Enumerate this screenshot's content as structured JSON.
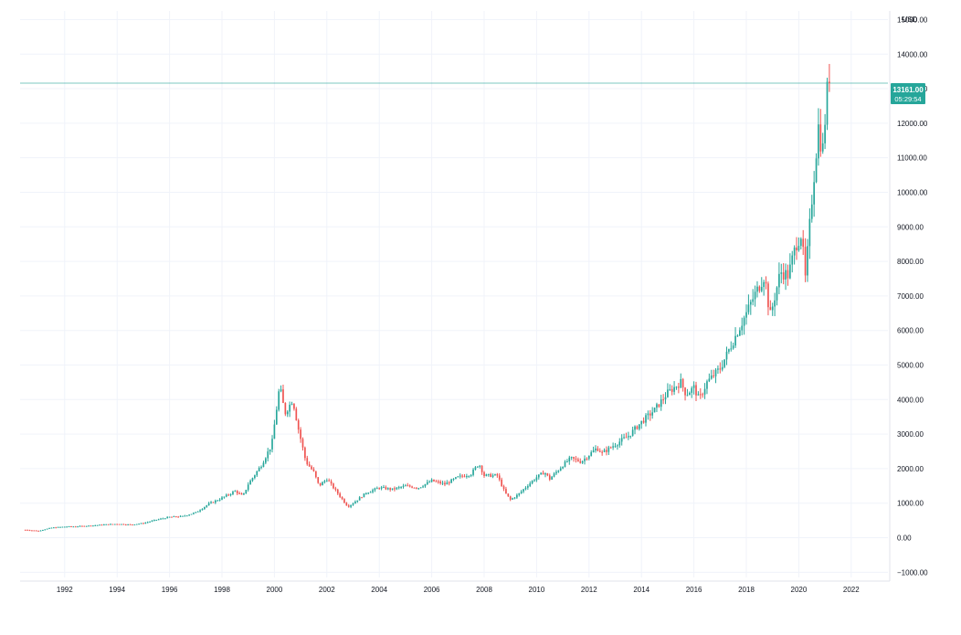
{
  "currency_label": "USD",
  "last_price_label": {
    "price": "13161.00",
    "countdown": "05:29:54"
  },
  "colors": {
    "up": "#26a69a",
    "down": "#ef5350",
    "grid": "#f0f3fa",
    "axis_text": "#131722",
    "price_line": "#26a69a",
    "price_badge": "#26a69a"
  },
  "chart_data": {
    "type": "candlestick",
    "title": "",
    "interval": "monthly",
    "x_axis": {
      "tick_labels": [
        "1992",
        "1994",
        "1996",
        "1998",
        "2000",
        "2002",
        "2004",
        "2006",
        "2008",
        "2010",
        "2012",
        "2014",
        "2016",
        "2018",
        "2020",
        "2022"
      ],
      "range": [
        1990.3,
        2023.4
      ]
    },
    "y_axis": {
      "tick_labels": [
        "15000.00",
        "14000.00",
        "13000.00",
        "12000.00",
        "11000.00",
        "10000.00",
        "9000.00",
        "8000.00",
        "7000.00",
        "6000.00",
        "5000.00",
        "4000.00",
        "3000.00",
        "2000.00",
        "1000.00",
        "0.00",
        "−1000.00"
      ],
      "range": [
        -1150,
        15250
      ],
      "unit": "USD"
    },
    "last_price": 13161,
    "grid": true,
    "anchors": [
      [
        1990.5,
        230
      ],
      [
        1991.0,
        200
      ],
      [
        1991.5,
        290
      ],
      [
        1992.0,
        320
      ],
      [
        1992.5,
        330
      ],
      [
        1993.0,
        350
      ],
      [
        1993.5,
        380
      ],
      [
        1994.0,
        400
      ],
      [
        1994.5,
        380
      ],
      [
        1995.0,
        420
      ],
      [
        1995.5,
        520
      ],
      [
        1996.0,
        600
      ],
      [
        1996.5,
        620
      ],
      [
        1997.0,
        730
      ],
      [
        1997.5,
        980
      ],
      [
        1998.0,
        1150
      ],
      [
        1998.5,
        1350
      ],
      [
        1998.8,
        1200
      ],
      [
        1999.0,
        1550
      ],
      [
        1999.5,
        2100
      ],
      [
        1999.9,
        2700
      ],
      [
        2000.2,
        4400
      ],
      [
        2000.4,
        3600
      ],
      [
        2000.7,
        4000
      ],
      [
        2000.9,
        3200
      ],
      [
        2001.2,
        2200
      ],
      [
        2001.5,
        1900
      ],
      [
        2001.7,
        1500
      ],
      [
        2002.0,
        1700
      ],
      [
        2002.5,
        1200
      ],
      [
        2002.8,
        900
      ],
      [
        2003.0,
        1000
      ],
      [
        2003.5,
        1300
      ],
      [
        2004.0,
        1450
      ],
      [
        2004.5,
        1400
      ],
      [
        2005.0,
        1500
      ],
      [
        2005.5,
        1450
      ],
      [
        2006.0,
        1650
      ],
      [
        2006.5,
        1550
      ],
      [
        2007.0,
        1750
      ],
      [
        2007.5,
        1850
      ],
      [
        2007.8,
        2150
      ],
      [
        2008.0,
        1800
      ],
      [
        2008.5,
        1800
      ],
      [
        2008.8,
        1300
      ],
      [
        2009.0,
        1100
      ],
      [
        2009.3,
        1250
      ],
      [
        2009.7,
        1550
      ],
      [
        2010.0,
        1750
      ],
      [
        2010.3,
        1900
      ],
      [
        2010.5,
        1700
      ],
      [
        2011.0,
        2100
      ],
      [
        2011.3,
        2300
      ],
      [
        2011.7,
        2200
      ],
      [
        2012.0,
        2400
      ],
      [
        2012.3,
        2600
      ],
      [
        2012.5,
        2450
      ],
      [
        2013.0,
        2700
      ],
      [
        2013.5,
        2950
      ],
      [
        2014.0,
        3350
      ],
      [
        2014.5,
        3700
      ],
      [
        2015.0,
        4200
      ],
      [
        2015.5,
        4500
      ],
      [
        2015.7,
        4150
      ],
      [
        2016.0,
        4350
      ],
      [
        2016.2,
        4000
      ],
      [
        2016.5,
        4500
      ],
      [
        2017.0,
        4900
      ],
      [
        2017.5,
        5700
      ],
      [
        2018.0,
        6500
      ],
      [
        2018.3,
        7000
      ],
      [
        2018.7,
        7600
      ],
      [
        2018.9,
        6400
      ],
      [
        2019.0,
        6700
      ],
      [
        2019.3,
        7700
      ],
      [
        2019.6,
        7600
      ],
      [
        2019.9,
        8500
      ],
      [
        2020.1,
        8800
      ],
      [
        2020.25,
        7500
      ],
      [
        2020.5,
        9800
      ],
      [
        2020.75,
        11900
      ],
      [
        2020.9,
        11100
      ],
      [
        2021.1,
        13100
      ],
      [
        2021.2,
        13161
      ]
    ]
  }
}
